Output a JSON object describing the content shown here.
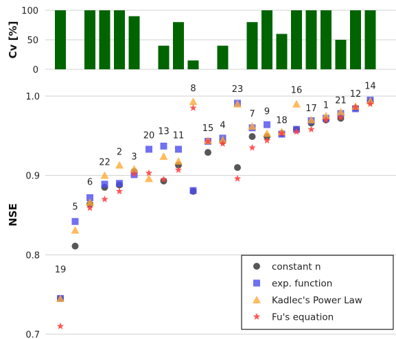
{
  "chart_data": [
    {
      "type": "bar",
      "ylabel": "Cv [%]",
      "ylim": [
        0,
        100
      ],
      "yticks": [
        0,
        50,
        100
      ],
      "grid": true,
      "bar_color": "#006400",
      "values": [
        100,
        0,
        100,
        100,
        100,
        90,
        0,
        40,
        80,
        15,
        0,
        40,
        0,
        80,
        100,
        60,
        100,
        100,
        100,
        50,
        100,
        100
      ]
    },
    {
      "type": "scatter",
      "ylabel": "NSE",
      "ylim": [
        0.7,
        1.0
      ],
      "yticks": [
        0.7,
        0.8,
        0.9,
        1.0
      ],
      "grid": true,
      "legend_position": "bottom-right",
      "x": [
        1,
        2,
        3,
        4,
        5,
        6,
        7,
        8,
        9,
        10,
        11,
        12,
        13,
        14,
        15,
        16,
        17,
        18,
        19,
        20,
        21,
        22
      ],
      "point_labels": [
        "19",
        "5",
        "6",
        "22",
        "2",
        "3",
        "20",
        "13",
        "11",
        "",
        "8",
        "15",
        "4",
        "",
        "23",
        "7",
        "9",
        "18",
        "",
        "16",
        "17",
        "1",
        "21",
        "12",
        "14"
      ],
      "label_slots": [
        1,
        2,
        3,
        4,
        5,
        6,
        7,
        8,
        9,
        10,
        10,
        11,
        12,
        13,
        14,
        15,
        16,
        17,
        18,
        19,
        19,
        20,
        21,
        21,
        22
      ],
      "label_x": [
        1,
        2,
        3,
        4,
        5,
        6,
        7,
        8,
        9,
        10,
        10,
        11,
        12,
        13,
        14,
        15,
        16,
        17,
        18,
        19,
        20,
        20,
        21,
        22,
        22
      ],
      "labels": [
        {
          "text": "19",
          "x": 1,
          "y": 0.778
        },
        {
          "text": "5",
          "x": 2,
          "y": 0.857
        },
        {
          "text": "6",
          "x": 3,
          "y": 0.888
        },
        {
          "text": "22",
          "x": 4,
          "y": 0.913
        },
        {
          "text": "2",
          "x": 5,
          "y": 0.926
        },
        {
          "text": "3",
          "x": 6,
          "y": 0.92
        },
        {
          "text": "20",
          "x": 7,
          "y": 0.947
        },
        {
          "text": "13",
          "x": 8,
          "y": 0.952
        },
        {
          "text": "11",
          "x": 9,
          "y": 0.947
        },
        {
          "text": "8",
          "x": 10,
          "y": 1.006
        },
        {
          "text": "15",
          "x": 11,
          "y": 0.956
        },
        {
          "text": "4",
          "x": 12,
          "y": 0.96
        },
        {
          "text": "23",
          "x": 13,
          "y": 1.005
        },
        {
          "text": "7",
          "x": 14,
          "y": 0.974
        },
        {
          "text": "9",
          "x": 15,
          "y": 0.977
        },
        {
          "text": "18",
          "x": 16,
          "y": 0.966
        },
        {
          "text": "16",
          "x": 17,
          "y": 1.004
        },
        {
          "text": "17",
          "x": 18,
          "y": 0.981
        },
        {
          "text": "1",
          "x": 19,
          "y": 0.985
        },
        {
          "text": "21",
          "x": 20,
          "y": 0.991
        },
        {
          "text": "12",
          "x": 21,
          "y": 0.999
        },
        {
          "text": "14",
          "x": 22,
          "y": 1.009
        }
      ],
      "series": [
        {
          "name": "constant n",
          "marker": "circle",
          "color": "#3a3a3a",
          "values": [
            0.745,
            0.811,
            0.864,
            0.885,
            0.888,
            0.905,
            null,
            0.893,
            0.913,
            0.88,
            0.929,
            0.943,
            0.91,
            0.949,
            0.949,
            0.953,
            0.958,
            0.966,
            0.97,
            0.972,
            0.985,
            0.993
          ]
        },
        {
          "name": "exp. function",
          "marker": "square",
          "color": "#4c4cf0",
          "values": [
            0.745,
            0.842,
            0.872,
            0.889,
            0.89,
            0.901,
            0.933,
            0.937,
            0.933,
            0.881,
            0.943,
            0.947,
            0.991,
            0.96,
            0.964,
            0.952,
            0.958,
            0.969,
            0.972,
            0.978,
            0.984,
            0.995
          ]
        },
        {
          "name": "Kadlec's Power Law",
          "marker": "triangle",
          "color": "#ffaa33",
          "values": [
            0.745,
            0.831,
            0.866,
            0.9,
            0.913,
            0.908,
            0.896,
            0.924,
            0.918,
            0.993,
            0.944,
            0.945,
            0.99,
            0.962,
            0.953,
            0.955,
            0.99,
            0.97,
            0.975,
            0.98,
            0.987,
            0.994
          ]
        },
        {
          "name": "Fu's equation",
          "marker": "star",
          "color": "#ff4444",
          "values": [
            0.71,
            null,
            0.859,
            0.87,
            0.88,
            0.902,
            0.903,
            0.895,
            0.907,
            0.985,
            0.943,
            0.94,
            0.896,
            0.935,
            0.944,
            0.953,
            0.955,
            0.958,
            0.97,
            0.973,
            0.986,
            0.99
          ]
        }
      ]
    }
  ]
}
